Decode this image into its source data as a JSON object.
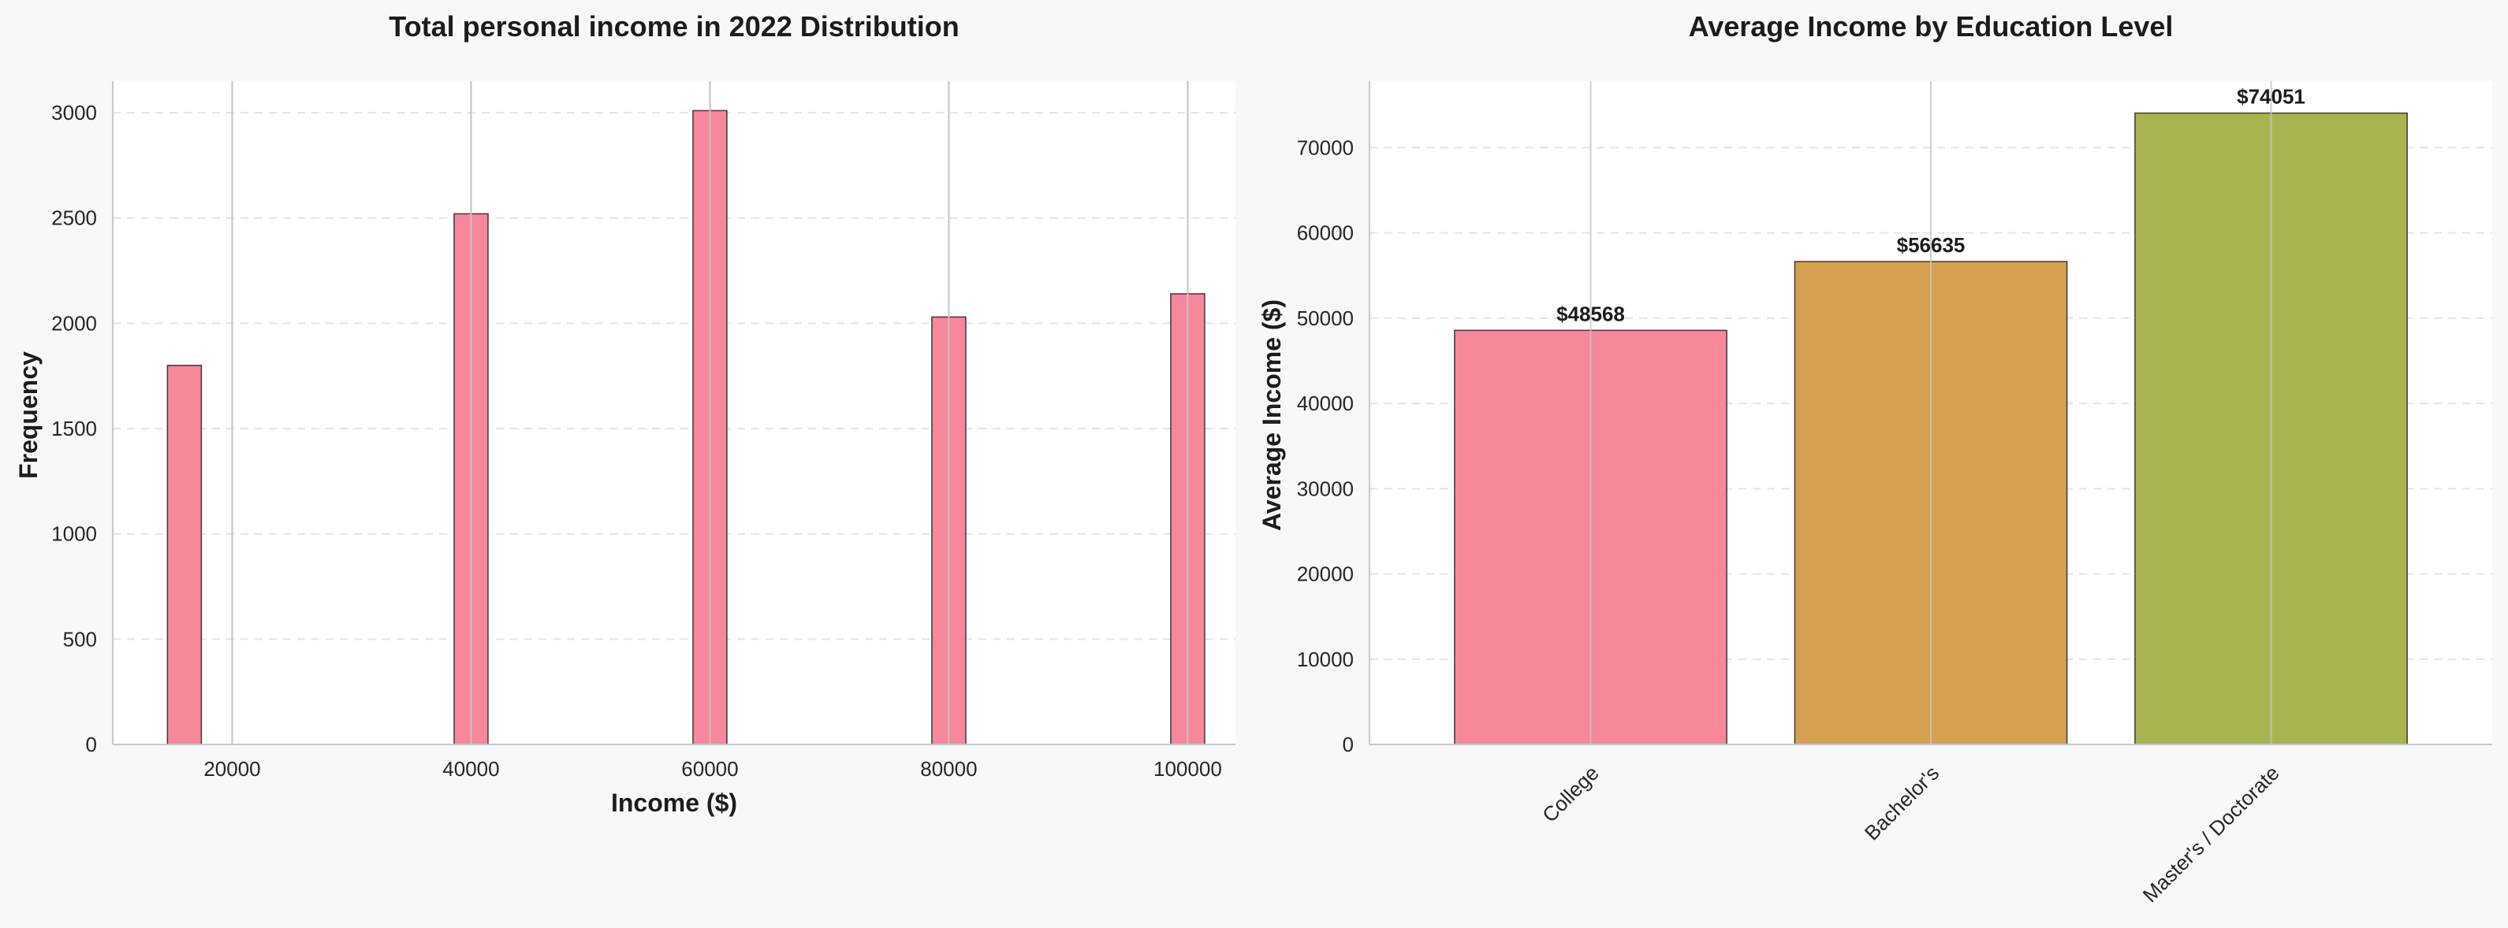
{
  "chart_data": [
    {
      "type": "bar",
      "title": "Total personal income in 2022 Distribution",
      "xlabel": "Income ($)",
      "ylabel": "Frequency",
      "x": [
        16000,
        40000,
        60000,
        80000,
        100000
      ],
      "values": [
        1800,
        2520,
        3010,
        2030,
        2140
      ],
      "xlim": [
        10000,
        104000
      ],
      "ylim": [
        0,
        3150
      ],
      "xticks": [
        20000,
        40000,
        60000,
        80000,
        100000
      ],
      "yticks": [
        0,
        500,
        1000,
        1500,
        2000,
        2500,
        3000
      ],
      "grid": true,
      "color": "#f7879a"
    },
    {
      "type": "bar",
      "title": "Average Income by Education Level",
      "xlabel": "",
      "ylabel": "Average Income ($)",
      "categories": [
        "College",
        "Bachelor's",
        "Master's / Doctorate"
      ],
      "values": [
        48568,
        56635,
        74051
      ],
      "data_labels": [
        "$48568",
        "$56635",
        "$74051"
      ],
      "ylim": [
        0,
        77800
      ],
      "yticks": [
        0,
        10000,
        20000,
        30000,
        40000,
        50000,
        60000,
        70000
      ],
      "grid": true,
      "colors": [
        "#f7879a",
        "#d5a150",
        "#a9b451"
      ]
    }
  ]
}
